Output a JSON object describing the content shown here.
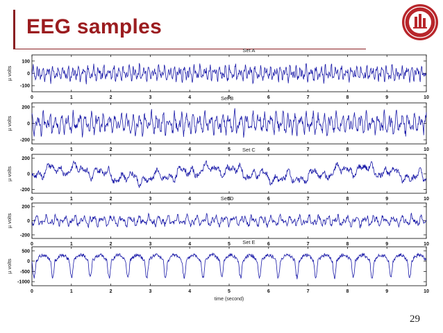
{
  "slide": {
    "title": "EEG samples",
    "page_number": "29",
    "accent_color": "#9b1c1f",
    "logo": "university-seal"
  },
  "chart_data": [
    {
      "type": "line",
      "title": "Set A",
      "ylabel": "µ volts",
      "xlim": [
        0,
        10
      ],
      "ylim": [
        -150,
        150
      ],
      "x_ticks": [
        "0",
        "1",
        "2",
        "3",
        "4",
        "5",
        "6",
        "7",
        "8",
        "9",
        "10"
      ],
      "y_ticks": [
        {
          "v": 100,
          "label": "100"
        },
        {
          "v": 0,
          "label": "0"
        },
        {
          "v": -100,
          "label": "-100"
        }
      ],
      "series": [
        {
          "color": "#1a1aa8",
          "amplitude": 75,
          "character": "dense normal alpha activity"
        }
      ]
    },
    {
      "type": "line",
      "title": "Set B",
      "ylabel": "µ volts",
      "xlim": [
        0,
        10
      ],
      "ylim": [
        -250,
        250
      ],
      "x_ticks": [
        "0",
        "1",
        "2",
        "3",
        "4",
        "5",
        "6",
        "7",
        "8",
        "9",
        "10"
      ],
      "y_ticks": [
        {
          "v": 200,
          "label": "200"
        },
        {
          "v": 0,
          "label": "0"
        },
        {
          "v": -200,
          "label": "-200"
        }
      ],
      "series": [
        {
          "color": "#1a1aa8",
          "amplitude": 150,
          "character": "regular oscillations"
        }
      ]
    },
    {
      "type": "line",
      "title": "Set C",
      "ylabel": "µ volts",
      "xlim": [
        0,
        10
      ],
      "ylim": [
        -250,
        250
      ],
      "x_ticks": [
        "0",
        "1",
        "2",
        "3",
        "4",
        "5",
        "6",
        "7",
        "8",
        "9",
        "10"
      ],
      "y_ticks": [
        {
          "v": 200,
          "label": "200"
        },
        {
          "v": 0,
          "label": "0"
        },
        {
          "v": -200,
          "label": "-200"
        }
      ],
      "series": [
        {
          "color": "#1a1aa8",
          "amplitude": 110,
          "character": "slow wandering waves"
        }
      ]
    },
    {
      "type": "line",
      "title": "Set D",
      "ylabel": "µ volts",
      "xlim": [
        0,
        10
      ],
      "ylim": [
        -250,
        250
      ],
      "x_ticks": [
        "0",
        "1",
        "2",
        "3",
        "4",
        "5",
        "6",
        "7",
        "8",
        "9",
        "10"
      ],
      "y_ticks": [
        {
          "v": 200,
          "label": "200"
        },
        {
          "v": 0,
          "label": "0"
        },
        {
          "v": -200,
          "label": "-200"
        }
      ],
      "series": [
        {
          "color": "#1a1aa8",
          "amplitude": 90,
          "character": "mixed low activity"
        }
      ]
    },
    {
      "type": "line",
      "title": "Set E",
      "ylabel": "µ volts",
      "xlabel": "time (second)",
      "xlim": [
        0,
        10
      ],
      "ylim": [
        -1200,
        700
      ],
      "x_ticks": [
        "0",
        "1",
        "2",
        "3",
        "4",
        "5",
        "6",
        "7",
        "8",
        "9",
        "10"
      ],
      "y_ticks": [
        {
          "v": 500,
          "label": "500"
        },
        {
          "v": 0,
          "label": "0"
        },
        {
          "v": -500,
          "label": "-500"
        },
        {
          "v": -1000,
          "label": "-1000"
        }
      ],
      "series": [
        {
          "color": "#1a1aa8",
          "amplitude": 500,
          "character": "seizure spikes"
        }
      ]
    }
  ]
}
